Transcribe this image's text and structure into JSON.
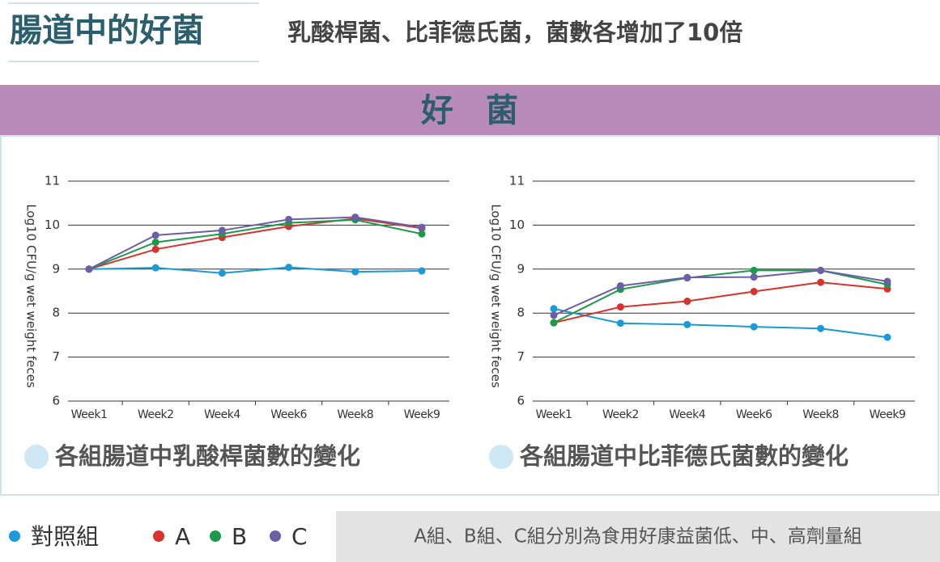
{
  "header": {
    "title": "腸道中的好菌",
    "subtitle": "乳酸桿菌、比菲德氏菌，菌數各增加了10倍"
  },
  "banner": "好　菌",
  "chart_data": [
    {
      "type": "line",
      "caption": "各組腸道中乳酸桿菌數的變化",
      "ylabel": "Log10 CFU/g wet weight feces",
      "categories": [
        "Week1",
        "Week2",
        "Week4",
        "Week6",
        "Week8",
        "Week9"
      ],
      "ylim": [
        6,
        11
      ],
      "yticks": [
        6,
        7,
        8,
        9,
        10,
        11
      ],
      "grid": true,
      "series": [
        {
          "name": "對照組",
          "color": "#1a9ad6",
          "values": [
            9,
            9.03,
            8.91,
            9.04,
            8.94,
            8.96
          ]
        },
        {
          "name": "A",
          "color": "#d9312b",
          "values": [
            9,
            9.45,
            9.72,
            9.97,
            10.15,
            9.93
          ]
        },
        {
          "name": "B",
          "color": "#1a9a4a",
          "values": [
            9,
            9.61,
            9.8,
            10.05,
            10.12,
            9.8
          ]
        },
        {
          "name": "C",
          "color": "#6b5fa8",
          "values": [
            9,
            9.77,
            9.88,
            10.13,
            10.18,
            9.95
          ]
        }
      ]
    },
    {
      "type": "line",
      "caption": "各組腸道中比菲德氏菌數的變化",
      "ylabel": "Log10 CFU/g wet weight feces",
      "categories": [
        "Week1",
        "Week2",
        "Week4",
        "Week6",
        "Week8",
        "Week9"
      ],
      "ylim": [
        6,
        11
      ],
      "yticks": [
        6,
        7,
        8,
        9,
        10,
        11
      ],
      "grid": true,
      "series": [
        {
          "color": "#1a9ad6",
          "values": [
            8.1,
            7.77,
            7.74,
            7.69,
            7.65,
            7.45
          ]
        },
        {
          "color": "#d9312b",
          "values": [
            7.78,
            8.14,
            8.27,
            8.49,
            8.7,
            8.55
          ]
        },
        {
          "color": "#1a9a4a",
          "values": [
            7.78,
            8.54,
            8.8,
            8.97,
            8.97,
            8.65
          ]
        },
        {
          "color": "#6b5fa8",
          "values": [
            7.95,
            8.62,
            8.81,
            8.82,
            8.97,
            8.72
          ]
        }
      ]
    }
  ],
  "note": "A組、B組、C組分別為食用好康益菌低、中、高劑量組"
}
